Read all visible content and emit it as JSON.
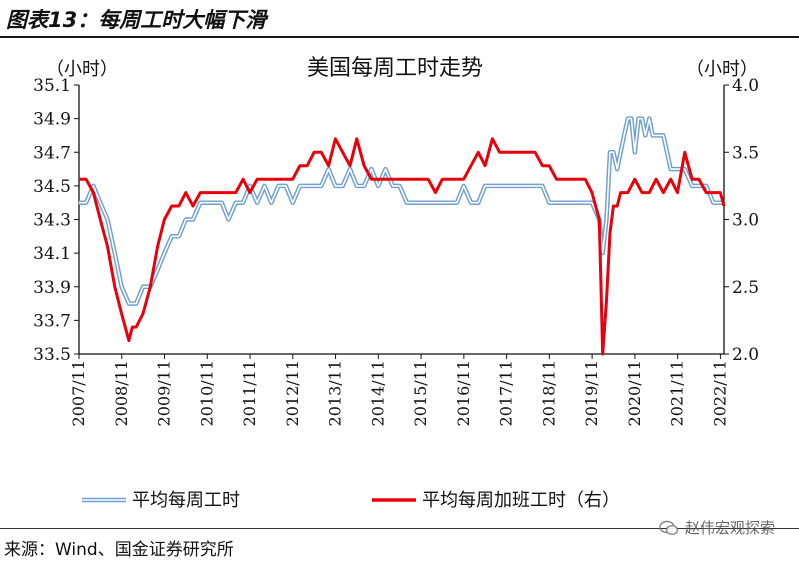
{
  "figure_title": "图表13：每周工时大幅下滑",
  "source": "来源：Wind、国金证券研究所",
  "watermark": "赵伟宏观探索",
  "colors": {
    "series_hours": "#6f9fd0",
    "series_overtime": "#e8000b",
    "axis": "#111111"
  },
  "chart_data": {
    "type": "line",
    "title": "美国每周工时走势",
    "y_left_unit": "（小时）",
    "y_right_unit": "（小时）",
    "y_left_ticks": [
      "35.1",
      "34.9",
      "34.7",
      "34.5",
      "34.3",
      "34.1",
      "33.9",
      "33.7",
      "33.5"
    ],
    "y_right_ticks": [
      "4.0",
      "3.5",
      "3.0",
      "2.5",
      "2.0"
    ],
    "x_ticks": [
      "2007/11",
      "2008/11",
      "2009/11",
      "2010/11",
      "2011/11",
      "2012/11",
      "2013/11",
      "2014/11",
      "2015/11",
      "2016/11",
      "2017/11",
      "2018/11",
      "2019/11",
      "2020/11",
      "2021/11",
      "2022/11"
    ],
    "ylim_left": [
      33.5,
      35.1
    ],
    "ylim_right": [
      2.0,
      4.0
    ],
    "x_start_year": 2007.833,
    "x_end_year": 2022.917,
    "grid": false,
    "legend_position": "bottom",
    "series": [
      {
        "name": "平均每周工时",
        "axis": "left",
        "style": "double-line",
        "x": [
          2007.83,
          2008.0,
          2008.17,
          2008.33,
          2008.5,
          2008.67,
          2008.83,
          2009.0,
          2009.17,
          2009.33,
          2009.5,
          2009.67,
          2009.83,
          2010.0,
          2010.17,
          2010.33,
          2010.5,
          2010.67,
          2010.83,
          2011.0,
          2011.17,
          2011.33,
          2011.5,
          2011.67,
          2011.83,
          2012.0,
          2012.17,
          2012.33,
          2012.5,
          2012.67,
          2012.83,
          2013.0,
          2013.17,
          2013.33,
          2013.5,
          2013.67,
          2013.83,
          2014.0,
          2014.17,
          2014.33,
          2014.5,
          2014.67,
          2014.83,
          2015.0,
          2015.17,
          2015.33,
          2015.5,
          2015.67,
          2015.83,
          2016.0,
          2016.17,
          2016.33,
          2016.5,
          2016.67,
          2016.83,
          2017.0,
          2017.17,
          2017.33,
          2017.5,
          2017.67,
          2017.83,
          2018.0,
          2018.17,
          2018.33,
          2018.5,
          2018.67,
          2018.83,
          2019.0,
          2019.17,
          2019.33,
          2019.5,
          2019.67,
          2019.83,
          2020.0,
          2020.08,
          2020.17,
          2020.25,
          2020.33,
          2020.42,
          2020.5,
          2020.58,
          2020.67,
          2020.75,
          2020.83,
          2020.92,
          2021.0,
          2021.08,
          2021.17,
          2021.25,
          2021.33,
          2021.5,
          2021.67,
          2021.83,
          2022.0,
          2022.17,
          2022.33,
          2022.5,
          2022.67,
          2022.83,
          2022.92
        ],
        "y": [
          34.4,
          34.4,
          34.5,
          34.4,
          34.3,
          34.1,
          33.9,
          33.8,
          33.8,
          33.9,
          33.9,
          34.0,
          34.1,
          34.2,
          34.2,
          34.3,
          34.3,
          34.4,
          34.4,
          34.4,
          34.4,
          34.3,
          34.4,
          34.4,
          34.5,
          34.4,
          34.5,
          34.4,
          34.5,
          34.5,
          34.4,
          34.5,
          34.5,
          34.5,
          34.5,
          34.6,
          34.5,
          34.5,
          34.6,
          34.5,
          34.5,
          34.6,
          34.5,
          34.6,
          34.5,
          34.5,
          34.4,
          34.4,
          34.4,
          34.4,
          34.4,
          34.4,
          34.4,
          34.4,
          34.5,
          34.4,
          34.4,
          34.5,
          34.5,
          34.5,
          34.5,
          34.5,
          34.5,
          34.5,
          34.5,
          34.5,
          34.4,
          34.4,
          34.4,
          34.4,
          34.4,
          34.4,
          34.4,
          34.3,
          34.1,
          34.3,
          34.7,
          34.7,
          34.6,
          34.7,
          34.8,
          34.9,
          34.9,
          34.7,
          34.9,
          34.9,
          34.8,
          34.9,
          34.8,
          34.8,
          34.8,
          34.6,
          34.6,
          34.6,
          34.5,
          34.5,
          34.5,
          34.4,
          34.4,
          34.4
        ]
      },
      {
        "name": "平均每周加班工时（右）",
        "axis": "right",
        "style": "solid",
        "x": [
          2007.83,
          2008.0,
          2008.17,
          2008.33,
          2008.5,
          2008.67,
          2008.83,
          2009.0,
          2009.08,
          2009.17,
          2009.33,
          2009.5,
          2009.67,
          2009.83,
          2010.0,
          2010.17,
          2010.33,
          2010.5,
          2010.67,
          2010.83,
          2011.0,
          2011.17,
          2011.33,
          2011.5,
          2011.67,
          2011.83,
          2012.0,
          2012.17,
          2012.33,
          2012.5,
          2012.67,
          2012.83,
          2013.0,
          2013.17,
          2013.33,
          2013.5,
          2013.67,
          2013.83,
          2014.0,
          2014.17,
          2014.33,
          2014.5,
          2014.67,
          2014.83,
          2015.0,
          2015.17,
          2015.33,
          2015.5,
          2015.67,
          2015.83,
          2016.0,
          2016.17,
          2016.33,
          2016.5,
          2016.67,
          2016.83,
          2017.0,
          2017.17,
          2017.33,
          2017.5,
          2017.67,
          2017.83,
          2018.0,
          2018.17,
          2018.33,
          2018.5,
          2018.67,
          2018.83,
          2019.0,
          2019.17,
          2019.33,
          2019.5,
          2019.67,
          2019.83,
          2020.0,
          2020.08,
          2020.17,
          2020.25,
          2020.33,
          2020.42,
          2020.5,
          2020.67,
          2020.83,
          2021.0,
          2021.17,
          2021.33,
          2021.5,
          2021.67,
          2021.83,
          2022.0,
          2022.17,
          2022.33,
          2022.5,
          2022.67,
          2022.83,
          2022.92
        ],
        "y": [
          3.3,
          3.3,
          3.2,
          3.0,
          2.8,
          2.5,
          2.3,
          2.1,
          2.2,
          2.2,
          2.3,
          2.5,
          2.8,
          3.0,
          3.1,
          3.1,
          3.2,
          3.1,
          3.2,
          3.2,
          3.2,
          3.2,
          3.2,
          3.2,
          3.3,
          3.2,
          3.3,
          3.3,
          3.3,
          3.3,
          3.3,
          3.3,
          3.4,
          3.4,
          3.5,
          3.5,
          3.4,
          3.6,
          3.5,
          3.4,
          3.6,
          3.4,
          3.3,
          3.3,
          3.3,
          3.3,
          3.3,
          3.3,
          3.3,
          3.3,
          3.3,
          3.2,
          3.3,
          3.3,
          3.3,
          3.3,
          3.4,
          3.5,
          3.4,
          3.6,
          3.5,
          3.5,
          3.5,
          3.5,
          3.5,
          3.5,
          3.4,
          3.4,
          3.3,
          3.3,
          3.3,
          3.3,
          3.3,
          3.2,
          3.0,
          2.0,
          2.4,
          2.9,
          3.1,
          3.1,
          3.2,
          3.2,
          3.3,
          3.2,
          3.2,
          3.3,
          3.2,
          3.3,
          3.2,
          3.5,
          3.3,
          3.3,
          3.2,
          3.2,
          3.2,
          3.1
        ]
      }
    ]
  }
}
